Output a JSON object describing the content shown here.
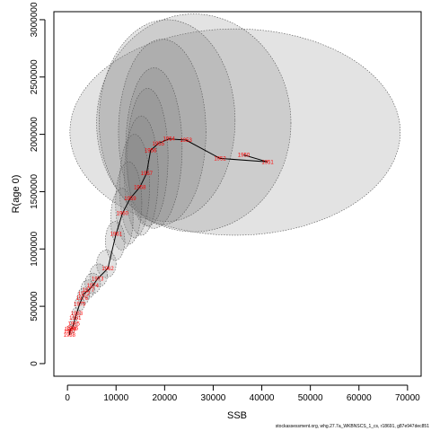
{
  "chart_data": {
    "type": "scatter",
    "xlabel": "SSB",
    "ylabel": "R(age 0)",
    "xlim": [
      -2800,
      72800
    ],
    "ylim": [
      -110000,
      3070000
    ],
    "x_ticks": [
      0,
      10000,
      20000,
      30000,
      40000,
      50000,
      60000,
      70000
    ],
    "y_ticks": [
      0,
      500000,
      1000000,
      1500000,
      2000000,
      2500000,
      3000000
    ],
    "grid": false,
    "line_color": "#000000",
    "label_color": "#ff0000",
    "ellipse_fill": "#808080",
    "points": [
      {
        "year": "1988",
        "ssb": 400,
        "rec": 250000
      },
      {
        "year": "1987",
        "ssb": 500,
        "rec": 280000
      },
      {
        "year": "1990",
        "ssb": 600,
        "rec": 300000
      },
      {
        "year": "1996",
        "ssb": 1000,
        "rec": 310000
      },
      {
        "year": "1985",
        "ssb": 1300,
        "rec": 350000
      },
      {
        "year": "1981",
        "ssb": 1600,
        "rec": 400000
      },
      {
        "year": "1983",
        "ssb": 1900,
        "rec": 440000
      },
      {
        "year": "1975",
        "ssb": 2500,
        "rec": 520000
      },
      {
        "year": "1976",
        "ssb": 3000,
        "rec": 570000
      },
      {
        "year": "1972",
        "ssb": 3400,
        "rec": 610000
      },
      {
        "year": "1977",
        "ssb": 4300,
        "rec": 640000
      },
      {
        "year": "1974",
        "ssb": 5200,
        "rec": 680000
      },
      {
        "year": "1973",
        "ssb": 6200,
        "rec": 740000
      },
      {
        "year": "1962",
        "ssb": 8300,
        "rec": 830000
      },
      {
        "year": "1961",
        "ssb": 10000,
        "rec": 1130000
      },
      {
        "year": "1960",
        "ssb": 11300,
        "rec": 1310000
      },
      {
        "year": "1959",
        "ssb": 12900,
        "rec": 1440000
      },
      {
        "year": "1958",
        "ssb": 14900,
        "rec": 1540000
      },
      {
        "year": "1957",
        "ssb": 16300,
        "rec": 1660000
      },
      {
        "year": "1956",
        "ssb": 17100,
        "rec": 1860000
      },
      {
        "year": "1955",
        "ssb": 18700,
        "rec": 1920000
      },
      {
        "year": "1954",
        "ssb": 20900,
        "rec": 1960000
      },
      {
        "year": "1953",
        "ssb": 24400,
        "rec": 1950000
      },
      {
        "year": "1952",
        "ssb": 31400,
        "rec": 1790000
      },
      {
        "year": "1951",
        "ssb": 41200,
        "rec": 1760000
      },
      {
        "year": "1950",
        "ssb": 36300,
        "rec": 1820000
      }
    ],
    "ellipses": [
      {
        "cx": 34500,
        "cy": 2020000,
        "rx": 34000,
        "ry": 900000
      },
      {
        "cx": 26000,
        "cy": 2100000,
        "rx": 20000,
        "ry": 950000
      },
      {
        "cx": 20500,
        "cy": 2120000,
        "rx": 14000,
        "ry": 880000
      },
      {
        "cx": 19500,
        "cy": 2020000,
        "rx": 9000,
        "ry": 810000
      },
      {
        "cx": 17800,
        "cy": 1880000,
        "rx": 5800,
        "ry": 700000
      },
      {
        "cx": 16500,
        "cy": 1800000,
        "rx": 4200,
        "ry": 600000
      },
      {
        "cx": 15200,
        "cy": 1640000,
        "rx": 3500,
        "ry": 520000
      },
      {
        "cx": 13800,
        "cy": 1550000,
        "rx": 3100,
        "ry": 450000
      },
      {
        "cx": 12600,
        "cy": 1400000,
        "rx": 2700,
        "ry": 360000
      },
      {
        "cx": 11200,
        "cy": 1260000,
        "rx": 2300,
        "ry": 270000
      },
      {
        "cx": 9800,
        "cy": 1070000,
        "rx": 2000,
        "ry": 170000
      },
      {
        "cx": 8000,
        "cy": 870000,
        "rx": 2000,
        "ry": 120000
      },
      {
        "cx": 6400,
        "cy": 770000,
        "rx": 1800,
        "ry": 100000
      },
      {
        "cx": 5200,
        "cy": 700000,
        "rx": 1600,
        "ry": 90000
      },
      {
        "cx": 4200,
        "cy": 650000,
        "rx": 1400,
        "ry": 80000
      },
      {
        "cx": 3300,
        "cy": 590000,
        "rx": 1200,
        "ry": 70000
      },
      {
        "cx": 2500,
        "cy": 520000,
        "rx": 1000,
        "ry": 60000
      },
      {
        "cx": 1800,
        "cy": 440000,
        "rx": 800,
        "ry": 50000
      },
      {
        "cx": 1300,
        "cy": 360000,
        "rx": 700,
        "ry": 45000
      },
      {
        "cx": 800,
        "cy": 300000,
        "rx": 600,
        "ry": 40000
      }
    ]
  },
  "footer_text": "stockassessment.org, whg.27.7a_WKBNSCS_1_cs, r18691, g87e947dec851"
}
